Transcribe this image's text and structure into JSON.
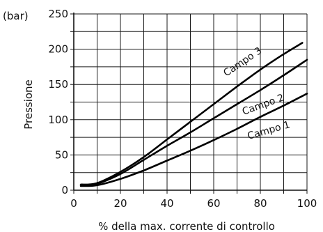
{
  "chart_data": {
    "type": "line",
    "title": "",
    "xlabel": "% della max. corrente di controllo",
    "ylabel": "Pressione",
    "yunit": "(bar)",
    "xlim": [
      0,
      100
    ],
    "ylim": [
      0,
      250
    ],
    "x_ticks": [
      0,
      20,
      40,
      60,
      80,
      100
    ],
    "y_ticks": [
      0,
      50,
      100,
      150,
      200,
      250
    ],
    "x_minor_step": 10,
    "y_minor_step": 25,
    "grid": true,
    "series": [
      {
        "name": "Campo 1",
        "points": [
          [
            3,
            6
          ],
          [
            10,
            7
          ],
          [
            20,
            16
          ],
          [
            30,
            28
          ],
          [
            40,
            42
          ],
          [
            50,
            56
          ],
          [
            60,
            71
          ],
          [
            70,
            87
          ],
          [
            80,
            104
          ],
          [
            90,
            120
          ],
          [
            100,
            137
          ]
        ]
      },
      {
        "name": "Campo 2",
        "points": [
          [
            5,
            7
          ],
          [
            10,
            9
          ],
          [
            20,
            23
          ],
          [
            30,
            43
          ],
          [
            40,
            63
          ],
          [
            50,
            82
          ],
          [
            60,
            102
          ],
          [
            70,
            122
          ],
          [
            80,
            142
          ],
          [
            90,
            163
          ],
          [
            100,
            185
          ]
        ]
      },
      {
        "name": "Campo 3",
        "points": [
          [
            3,
            8
          ],
          [
            10,
            10
          ],
          [
            20,
            26
          ],
          [
            30,
            47
          ],
          [
            40,
            72
          ],
          [
            50,
            97
          ],
          [
            60,
            122
          ],
          [
            70,
            147
          ],
          [
            80,
            171
          ],
          [
            90,
            193
          ],
          [
            98,
            209
          ]
        ]
      }
    ]
  },
  "labels": {
    "campo1": "Campo 1",
    "campo2": "Campo 2",
    "campo3": "Campo 3"
  }
}
